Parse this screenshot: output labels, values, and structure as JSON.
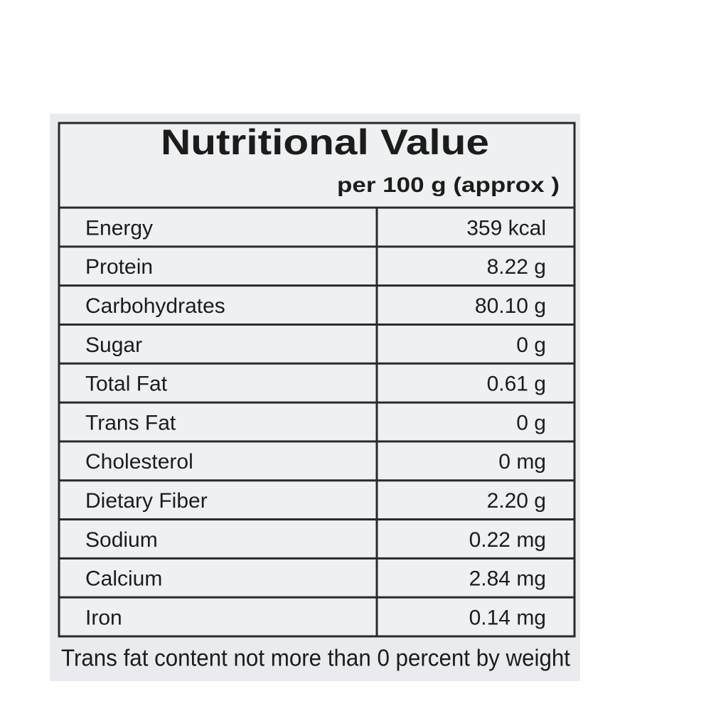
{
  "label": {
    "title": "Nutritional Value",
    "subtitle": "per 100 g  (approx )",
    "rows": [
      [
        "Energy",
        "359 kcal"
      ],
      [
        "Protein",
        "8.22 g"
      ],
      [
        "Carbohydrates",
        "80.10 g"
      ],
      [
        "Sugar",
        "0 g"
      ],
      [
        "Total Fat",
        "0.61 g"
      ],
      [
        "Trans Fat",
        "0 g"
      ],
      [
        "Cholesterol",
        "0 mg"
      ],
      [
        "Dietary Fiber",
        "2.20 g"
      ],
      [
        "Sodium",
        "0.22 mg"
      ],
      [
        "Calcium",
        "2.84 mg"
      ],
      [
        "Iron",
        "0.14 mg"
      ]
    ],
    "footnote": "Trans fat content not more than 0 percent by weight"
  }
}
